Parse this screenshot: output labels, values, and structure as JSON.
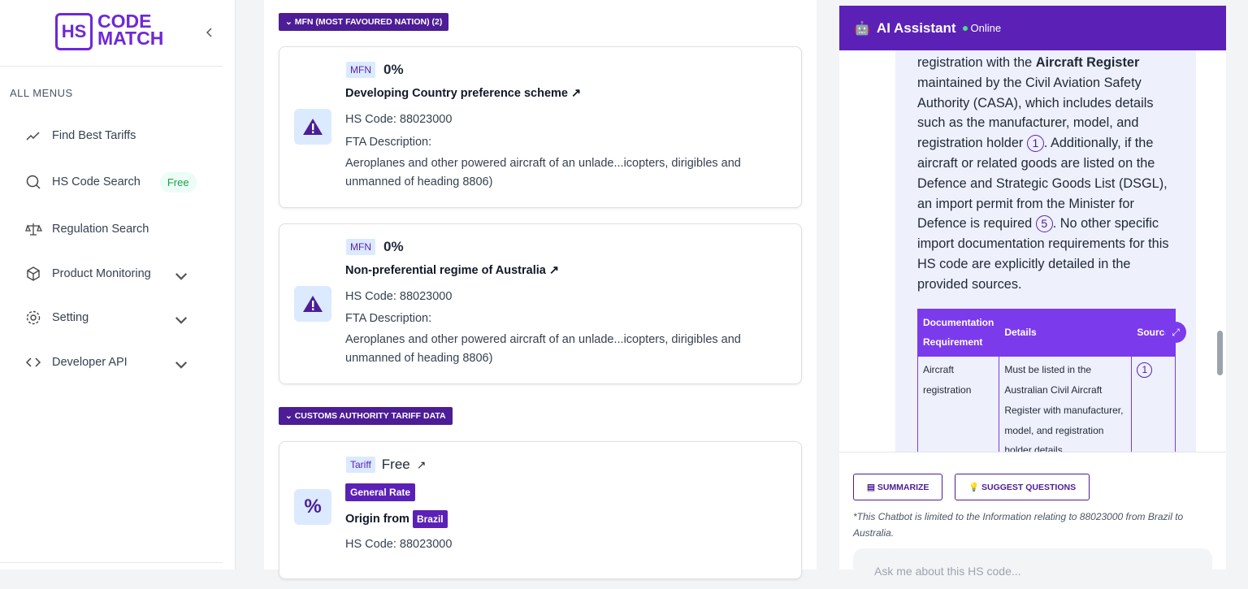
{
  "sidebar": {
    "logo": {
      "mark": "HS",
      "top": "CODE",
      "bottom": "MATCH"
    },
    "section_label": "ALL MENUS",
    "menu": [
      {
        "label": "Find Best Tariffs"
      },
      {
        "label": "HS Code Search",
        "badge": "Free"
      },
      {
        "label": "Regulation Search"
      },
      {
        "label": "Product Monitoring"
      },
      {
        "label": "Setting"
      },
      {
        "label": "Developer API"
      }
    ]
  },
  "main": {
    "sections": [
      {
        "title": "MFN (MOST FAVOURED NATION) (2)",
        "cards": [
          {
            "tag": "MFN",
            "rate": "0%",
            "title": "Developing Country preference scheme",
            "hs_code": "HS Code: 88023000",
            "description_label": "FTA Description:",
            "description": "Aeroplanes and other powered aircraft of an unlade...icopters, dirigibles and unmanned of heading 8806)"
          },
          {
            "tag": "MFN",
            "rate": "0%",
            "title": "Non-preferential regime of Australia",
            "hs_code": "HS Code: 88023000",
            "description_label": "FTA Description:",
            "description": "Aeroplanes and other powered aircraft of an unlade...icopters, dirigibles and unmanned of heading 8806)"
          }
        ]
      },
      {
        "title": "CUSTOMS AUTHORITY TARIFF DATA",
        "cards": [
          {
            "tag": "Tariff",
            "rate": "Free",
            "badge": "General Rate",
            "origin_label": "Origin from",
            "origin": "Brazil",
            "hs_code": "HS Code: 88023000"
          }
        ]
      }
    ]
  },
  "assistant": {
    "title": "AI Assistant",
    "status": "Online",
    "message": [
      "registration with the ",
      "Aircraft Register",
      " maintained by the Civil Aviation Safety Authority (CASA), which includes details such as the manufacturer, model, and registration holder ",
      "1",
      ". Additionally, if the aircraft or related goods are listed on the Defence and Strategic Goods List (DSGL), an import permit from the Minister for Defence is required ",
      "5",
      ". No other specific import documentation requirements for this HS code are explicitly detailed in the provided sources."
    ],
    "table": {
      "headers": [
        "Documentation Requirement",
        "Details",
        "Source"
      ],
      "rows": [
        [
          "Aircraft registration",
          "Must be listed in the Australian Civil Aircraft Register with manufacturer, model, and registration holder details.",
          "1"
        ]
      ]
    },
    "buttons": [
      "SUMMARIZE",
      "SUGGEST QUESTIONS"
    ],
    "disclaimer": "*This Chatbot is limited to the Information relating to 88023000 from Brazil to Australia.",
    "input_placeholder": "Ask me about this HS code..."
  }
}
